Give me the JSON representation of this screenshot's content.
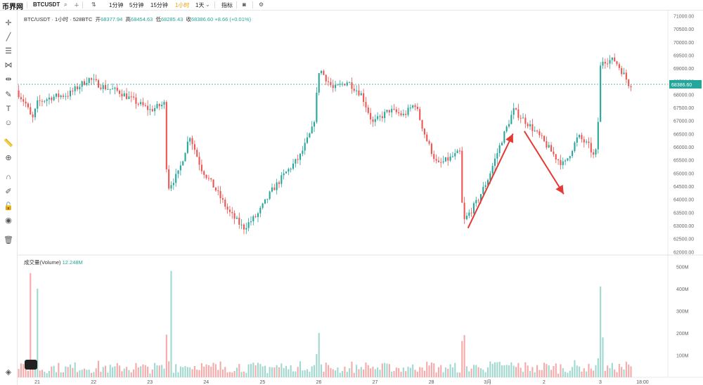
{
  "toolbar": {
    "logo": "币界网",
    "symbol": "BTCUSDT",
    "intervals": [
      "1分钟",
      "5分钟",
      "15分钟",
      "1小时",
      "1天"
    ],
    "active_interval": "1小时",
    "indicators_label": "指标"
  },
  "legend": {
    "title": "BTC/USDT · 1小时 · 528BTC",
    "open_label": "开",
    "open": "68377.94",
    "high_label": "高",
    "high": "68454.63",
    "low_label": "低",
    "low": "68285.43",
    "close_label": "收",
    "close": "68386.60",
    "change": "+8.66 (+0.01%)"
  },
  "volume_legend": {
    "label": "成交量(Volume)",
    "value": "12.248M"
  },
  "colors": {
    "up": "#26a69a",
    "down": "#ef5350",
    "vol_up": "#9fd8cf",
    "vol_down": "#f5a9a9",
    "price_tag": "#26a69a",
    "arrow": "#e53935"
  },
  "icons": [
    "crosshair-icon",
    "trendline-icon",
    "fib-icon",
    "pattern-icon",
    "measure-icon",
    "brush-icon",
    "text-icon",
    "emoji-icon",
    "ruler-icon",
    "zoom-icon",
    "magnet-icon",
    "lock-drawing-icon",
    "lock-icon",
    "eye-icon",
    "trash-icon",
    "camera-icon",
    "settings-icon"
  ],
  "chart_data": {
    "type": "candlestick",
    "price_axis_ticks": [
      "71000.00",
      "70500.00",
      "70000.00",
      "69500.00",
      "69000.00",
      "68500.00",
      "68000.00",
      "67500.00",
      "67000.00",
      "66500.00",
      "66000.00",
      "65500.00",
      "65000.00",
      "64500.00",
      "64000.00",
      "63500.00",
      "63000.00",
      "62500.00",
      "62000.00"
    ],
    "price_ylim": [
      61900,
      71200
    ],
    "current_price_label": "68386.60",
    "volume_axis_ticks": [
      "500M",
      "400M",
      "300M",
      "200M",
      "100M"
    ],
    "volume_ylim": [
      0,
      520
    ],
    "x_tick_labels": [
      "21",
      "22",
      "23",
      "24",
      "25",
      "26",
      "27",
      "28",
      "3月",
      "2",
      "3",
      "18:00"
    ],
    "x_tick_positions_days": [
      0,
      1,
      2,
      3,
      4,
      5,
      6,
      7,
      8,
      9,
      10,
      10.75
    ],
    "x_range_days": [
      -0.35,
      11.2
    ],
    "price_path_anchors": [
      {
        "t": -0.33,
        "p": 68150
      },
      {
        "t": -0.15,
        "p": 67600
      },
      {
        "t": -0.05,
        "p": 67000
      },
      {
        "t": 0.05,
        "p": 67700
      },
      {
        "t": 0.3,
        "p": 67900
      },
      {
        "t": 0.6,
        "p": 68000
      },
      {
        "t": 0.95,
        "p": 68600
      },
      {
        "t": 1.2,
        "p": 68300
      },
      {
        "t": 1.5,
        "p": 68100
      },
      {
        "t": 1.8,
        "p": 67700
      },
      {
        "t": 2.05,
        "p": 67400
      },
      {
        "t": 2.3,
        "p": 67650
      },
      {
        "t": 2.35,
        "p": 64400
      },
      {
        "t": 2.55,
        "p": 65000
      },
      {
        "t": 2.75,
        "p": 66450
      },
      {
        "t": 2.95,
        "p": 65200
      },
      {
        "t": 3.2,
        "p": 64400
      },
      {
        "t": 3.45,
        "p": 63500
      },
      {
        "t": 3.7,
        "p": 62900
      },
      {
        "t": 3.95,
        "p": 63400
      },
      {
        "t": 4.2,
        "p": 64300
      },
      {
        "t": 4.45,
        "p": 65000
      },
      {
        "t": 4.7,
        "p": 65600
      },
      {
        "t": 4.95,
        "p": 66800
      },
      {
        "t": 5.05,
        "p": 69000
      },
      {
        "t": 5.3,
        "p": 68200
      },
      {
        "t": 5.55,
        "p": 68500
      },
      {
        "t": 5.8,
        "p": 68000
      },
      {
        "t": 6.0,
        "p": 66900
      },
      {
        "t": 6.3,
        "p": 67400
      },
      {
        "t": 6.55,
        "p": 67200
      },
      {
        "t": 6.75,
        "p": 67650
      },
      {
        "t": 6.95,
        "p": 66300
      },
      {
        "t": 7.15,
        "p": 65300
      },
      {
        "t": 7.4,
        "p": 65600
      },
      {
        "t": 7.55,
        "p": 65800
      },
      {
        "t": 7.6,
        "p": 63100
      },
      {
        "t": 7.85,
        "p": 63900
      },
      {
        "t": 8.05,
        "p": 64800
      },
      {
        "t": 8.3,
        "p": 66300
      },
      {
        "t": 8.5,
        "p": 67400
      },
      {
        "t": 8.75,
        "p": 66900
      },
      {
        "t": 9.0,
        "p": 66300
      },
      {
        "t": 9.25,
        "p": 65600
      },
      {
        "t": 9.4,
        "p": 65300
      },
      {
        "t": 9.65,
        "p": 66400
      },
      {
        "t": 9.85,
        "p": 66000
      },
      {
        "t": 9.95,
        "p": 65500
      },
      {
        "t": 10.0,
        "p": 66800
      },
      {
        "t": 10.05,
        "p": 69300
      },
      {
        "t": 10.3,
        "p": 69300
      },
      {
        "t": 10.45,
        "p": 68800
      },
      {
        "t": 10.55,
        "p": 68390
      }
    ],
    "volume_spikes": [
      {
        "t": -0.12,
        "v": 470
      },
      {
        "t": 0.02,
        "v": 400
      },
      {
        "t": 2.37,
        "v": 480
      },
      {
        "t": 10.0,
        "v": 410
      },
      {
        "t": 10.03,
        "v": 270
      },
      {
        "t": 5.0,
        "v": 200
      },
      {
        "t": 7.6,
        "v": 190
      },
      {
        "t": 10.05,
        "v": 180
      }
    ],
    "annotations": [
      {
        "type": "arrow",
        "from": {
          "t": 7.65,
          "p": 62900
        },
        "to": {
          "t": 8.45,
          "p": 66500
        }
      },
      {
        "type": "arrow",
        "from": {
          "t": 8.65,
          "p": 66600
        },
        "to": {
          "t": 9.35,
          "p": 64200
        }
      }
    ]
  }
}
